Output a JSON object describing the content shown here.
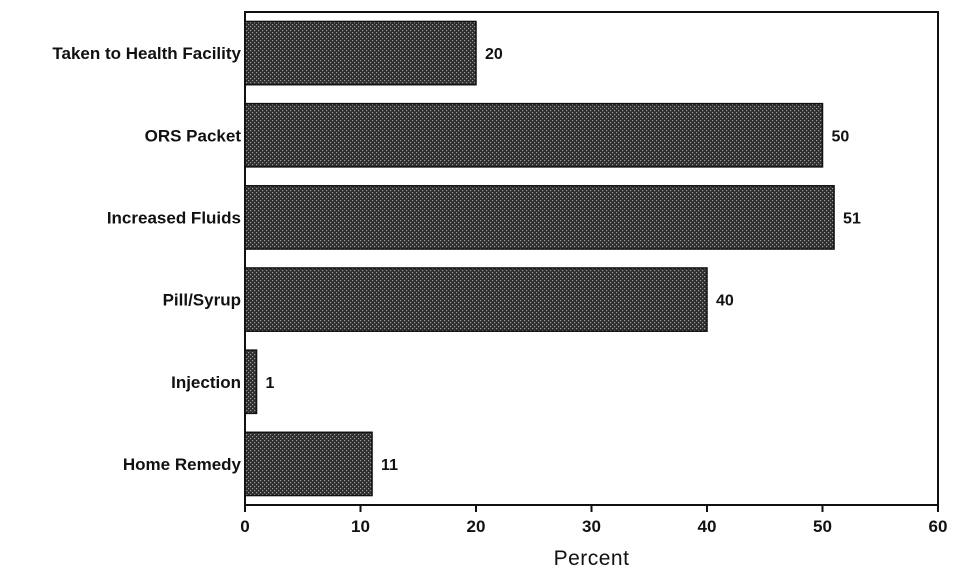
{
  "chart_data": {
    "type": "bar",
    "orientation": "horizontal",
    "categories": [
      "Taken to Health Facility",
      "ORS Packet",
      "Increased Fluids",
      "Pill/Syrup",
      "Injection",
      "Home Remedy"
    ],
    "values": [
      20,
      50,
      51,
      40,
      1,
      11
    ],
    "value_labels": [
      "20",
      "50",
      "51",
      "40",
      "1",
      "11"
    ],
    "title": "",
    "xlabel": "Percent",
    "ylabel": "",
    "xlim": [
      0,
      60
    ],
    "xticks": [
      0,
      10,
      20,
      30,
      40,
      50,
      60
    ],
    "xtick_labels": [
      "0",
      "10",
      "20",
      "30",
      "40",
      "50",
      "60"
    ],
    "grid": false,
    "legend": "none",
    "bar_color": "#3a3a3a"
  }
}
